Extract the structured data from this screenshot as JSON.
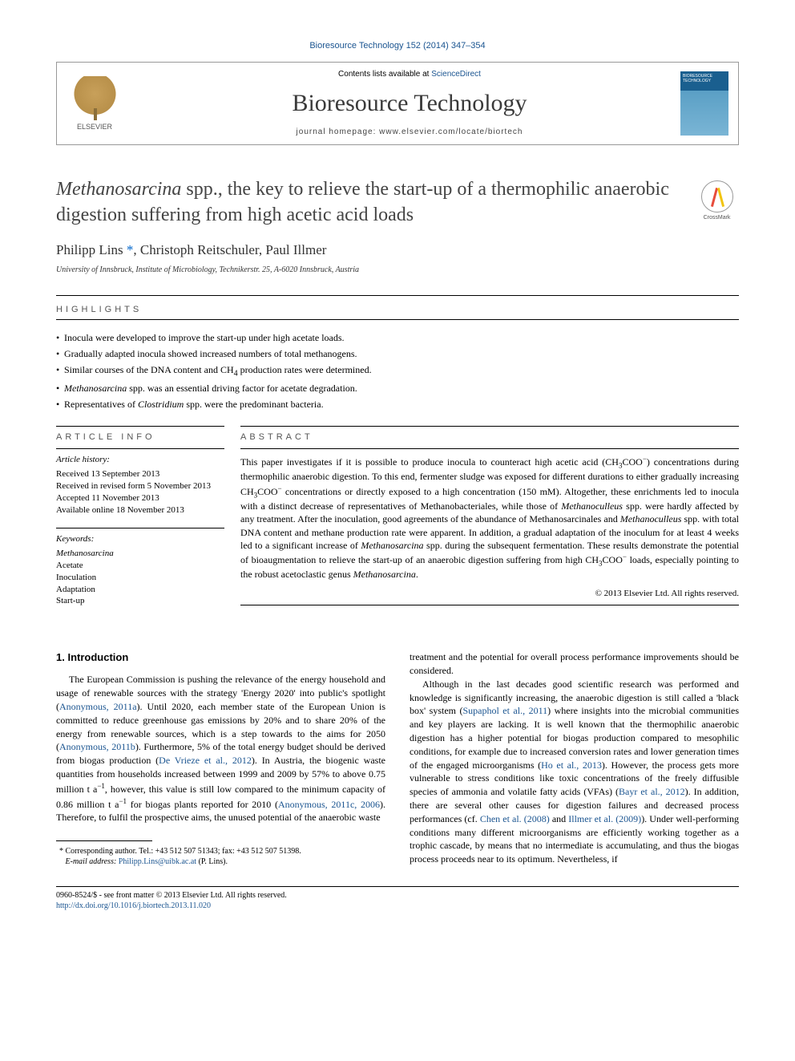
{
  "journal_ref": "Bioresource Technology 152 (2014) 347–354",
  "header": {
    "contents_prefix": "Contents lists available at",
    "contents_link": "ScienceDirect",
    "journal_name": "Bioresource Technology",
    "homepage_prefix": "journal homepage:",
    "homepage_url": "www.elsevier.com/locate/biortech",
    "elsevier": "ELSEVIER",
    "cover_text": "BIORESOURCE TECHNOLOGY"
  },
  "crossmark_label": "CrossMark",
  "title_html": "<em>Methanosarcina</em> spp., the key to relieve the start-up of a thermophilic anaerobic digestion suffering from high acetic acid loads",
  "authors_html": "Philipp Lins <span class='corr-mark'>*</span>, Christoph Reitschuler, Paul Illmer",
  "affiliation": "University of Innsbruck, Institute of Microbiology, Technikerstr. 25, A-6020 Innsbruck, Austria",
  "sections": {
    "highlights_label": "HIGHLIGHTS",
    "article_info_label": "ARTICLE INFO",
    "abstract_label": "ABSTRACT"
  },
  "highlights": [
    "Inocula were developed to improve the start-up under high acetate loads.",
    "Gradually adapted inocula showed increased numbers of total methanogens.",
    "Similar courses of the DNA content and CH<sub>4</sub> production rates were determined.",
    "<em>Methanosarcina</em> spp. was an essential driving factor for acetate degradation.",
    "Representatives of <em>Clostridium</em> spp. were the predominant bacteria."
  ],
  "article_info": {
    "history_heading": "Article history:",
    "history_lines": [
      "Received 13 September 2013",
      "Received in revised form 5 November 2013",
      "Accepted 11 November 2013",
      "Available online 18 November 2013"
    ],
    "keywords_heading": "Keywords:",
    "keywords": [
      "<em>Methanosarcina</em>",
      "Acetate",
      "Inoculation",
      "Adaptation",
      "Start-up"
    ]
  },
  "abstract_html": "This paper investigates if it is possible to produce inocula to counteract high acetic acid (CH<sub>3</sub>COO<sup>−</sup>) concentrations during thermophilic anaerobic digestion. To this end, fermenter sludge was exposed for different durations to either gradually increasing CH<sub>3</sub>COO<sup>−</sup> concentrations or directly exposed to a high concentration (150 mM). Altogether, these enrichments led to inocula with a distinct decrease of representatives of Methanobacteriales, while those of <em>Methanoculleus</em> spp. were hardly affected by any treatment. After the inoculation, good agreements of the abundance of Methanosarcinales and <em>Methanoculleus</em> spp. with total DNA content and methane production rate were apparent. In addition, a gradual adaptation of the inoculum for at least 4 weeks led to a significant increase of <em>Methanosarcina</em> spp. during the subsequent fermentation. These results demonstrate the potential of bioaugmentation to relieve the start-up of an anaerobic digestion suffering from high CH<sub>3</sub>COO<sup>−</sup> loads, especially pointing to the robust acetoclastic genus <em>Methanosarcina</em>.",
  "copyright": "© 2013 Elsevier Ltd. All rights reserved.",
  "body": {
    "intro_heading": "1. Introduction",
    "left_para_html": "The European Commission is pushing the relevance of the energy household and usage of renewable sources with the strategy 'Energy 2020' into public's spotlight (<span class='ref-link'>Anonymous, 2011a</span>). Until 2020, each member state of the European Union is committed to reduce greenhouse gas emissions by 20% and to share 20% of the energy from renewable sources, which is a step towards to the aims for 2050 (<span class='ref-link'>Anonymous, 2011b</span>). Furthermore, 5% of the total energy budget should be derived from biogas production (<span class='ref-link'>De Vrieze et al., 2012</span>). In Austria, the biogenic waste quantities from households increased between 1999 and 2009 by 57% to above 0.75 million t a<sup>−1</sup>, however, this value is still low compared to the minimum capacity of 0.86 million t a<sup>−1</sup> for biogas plants reported for 2010 (<span class='ref-link'>Anonymous, 2011c, 2006</span>). Therefore, to fulfil the prospective aims, the unused potential of the anaerobic waste",
    "right_para1_html": "treatment and the potential for overall process performance improvements should be considered.",
    "right_para2_html": "Although in the last decades good scientific research was performed and knowledge is significantly increasing, the anaerobic digestion is still called a 'black box' system (<span class='ref-link'>Supaphol et al., 2011</span>) where insights into the microbial communities and key players are lacking. It is well known that the thermophilic anaerobic digestion has a higher potential for biogas production compared to mesophilic conditions, for example due to increased conversion rates and lower generation times of the engaged microorganisms (<span class='ref-link'>Ho et al., 2013</span>). However, the process gets more vulnerable to stress conditions like toxic concentrations of the freely diffusible species of ammonia and volatile fatty acids (VFAs) (<span class='ref-link'>Bayr et al., 2012</span>). In addition, there are several other causes for digestion failures and decreased process performances (cf. <span class='ref-link'>Chen et al. (2008)</span> and <span class='ref-link'>Illmer et al. (2009)</span>). Under well-performing conditions many different microorganisms are efficiently working together as a trophic cascade, by means that no intermediate is accumulating, and thus the biogas process proceeds near to its optimum. Nevertheless, if"
  },
  "footnote": {
    "corr_html": "* Corresponding author. Tel.: +43 512 507 51343; fax: +43 512 507 51398.",
    "email_label": "E-mail address:",
    "email": "Philipp.Lins@uibk.ac.at",
    "email_suffix": "(P. Lins)."
  },
  "bottom": {
    "issn_line": "0960-8524/$ - see front matter © 2013 Elsevier Ltd. All rights reserved.",
    "doi": "http://dx.doi.org/10.1016/j.biortech.2013.11.020"
  },
  "styling": {
    "text_color": "#000000",
    "link_color": "#1a5490",
    "heading_gray": "#444444",
    "body_font": "Georgia, serif",
    "sans_font": "Arial, sans-serif",
    "title_fontsize": 24,
    "author_fontsize": 17,
    "body_fontsize": 12,
    "section_label_letterspacing": 4
  }
}
